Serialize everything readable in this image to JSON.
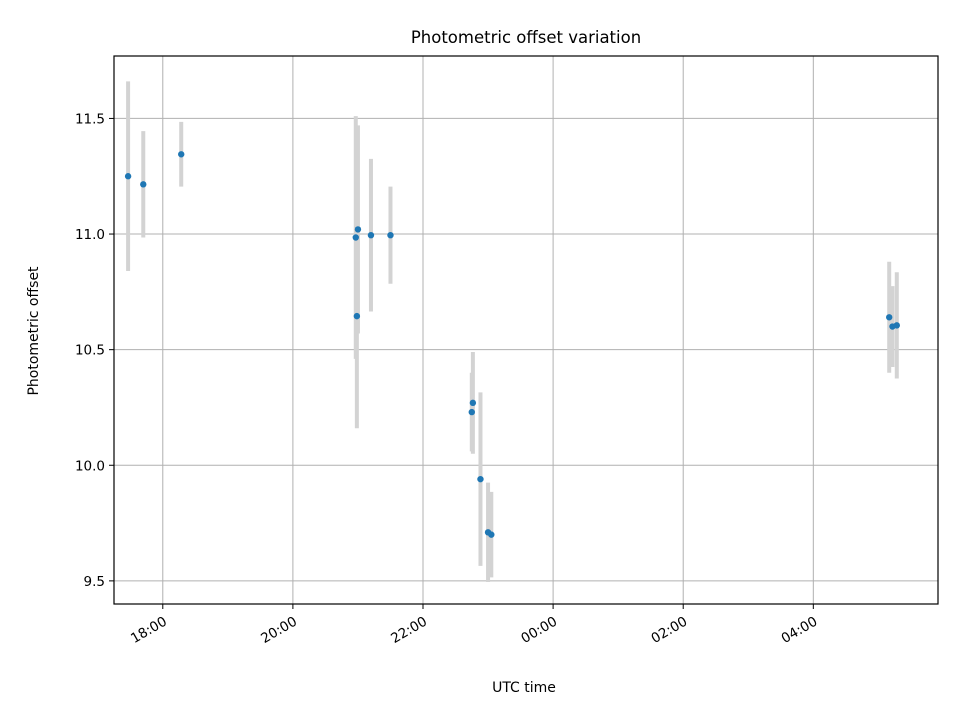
{
  "chart_data": {
    "type": "scatter",
    "title": "Photometric offset variation",
    "xlabel": "UTC time",
    "ylabel": "Photometric offset",
    "x_axis": {
      "type": "time",
      "range": [
        "2024-01-01 17:15",
        "2024-01-02 05:55"
      ],
      "ticks": [
        {
          "value": "2024-01-01 18:00",
          "label": "18:00"
        },
        {
          "value": "2024-01-01 20:00",
          "label": "20:00"
        },
        {
          "value": "2024-01-01 22:00",
          "label": "22:00"
        },
        {
          "value": "2024-01-02 00:00",
          "label": "00:00"
        },
        {
          "value": "2024-01-02 02:00",
          "label": "02:00"
        },
        {
          "value": "2024-01-02 04:00",
          "label": "04:00"
        }
      ],
      "tick_label_rotation": 30
    },
    "y_axis": {
      "range": [
        9.4,
        11.77
      ],
      "ticks": [
        {
          "value": 9.5,
          "label": "9.5"
        },
        {
          "value": 10.0,
          "label": "10.0"
        },
        {
          "value": 10.5,
          "label": "10.5"
        },
        {
          "value": 11.0,
          "label": "11.0"
        },
        {
          "value": 11.5,
          "label": "11.5"
        }
      ]
    },
    "grid": true,
    "marker_color": "#1f77b4",
    "errorbar_color": "#d3d3d3",
    "points": [
      {
        "time": "2024-01-01 17:28",
        "y": 11.25,
        "err": 0.41
      },
      {
        "time": "2024-01-01 17:42",
        "y": 11.215,
        "err": 0.23
      },
      {
        "time": "2024-01-01 18:17",
        "y": 11.345,
        "err": 0.14
      },
      {
        "time": "2024-01-01 20:58",
        "y": 10.985,
        "err": 0.525
      },
      {
        "time": "2024-01-01 20:59",
        "y": 10.645,
        "err": 0.485
      },
      {
        "time": "2024-01-01 21:00",
        "y": 11.02,
        "err": 0.45
      },
      {
        "time": "2024-01-01 21:12",
        "y": 10.995,
        "err": 0.33
      },
      {
        "time": "2024-01-01 21:30",
        "y": 10.995,
        "err": 0.21
      },
      {
        "time": "2024-01-01 22:45",
        "y": 10.23,
        "err": 0.17
      },
      {
        "time": "2024-01-01 22:46",
        "y": 10.27,
        "err": 0.22
      },
      {
        "time": "2024-01-01 22:53",
        "y": 9.94,
        "err": 0.375
      },
      {
        "time": "2024-01-01 23:00",
        "y": 9.71,
        "err": 0.215
      },
      {
        "time": "2024-01-01 23:03",
        "y": 9.7,
        "err": 0.185
      },
      {
        "time": "2024-01-02 05:10",
        "y": 10.64,
        "err": 0.24
      },
      {
        "time": "2024-01-02 05:13",
        "y": 10.6,
        "err": 0.175
      },
      {
        "time": "2024-01-02 05:17",
        "y": 10.605,
        "err": 0.23
      }
    ]
  }
}
